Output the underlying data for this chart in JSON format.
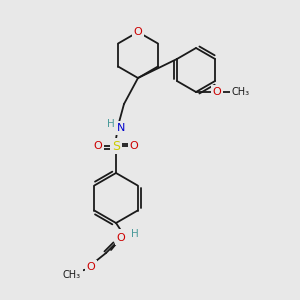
{
  "background_color": "#e8e8e8",
  "bond_color": "#1a1a1a",
  "atom_colors": {
    "O": "#cc0000",
    "N": "#0000cc",
    "S": "#cccc00",
    "H": "#4a9a9a",
    "C": "#1a1a1a"
  },
  "figsize": [
    3.0,
    3.0
  ],
  "dpi": 100,
  "bond_lw": 1.3
}
